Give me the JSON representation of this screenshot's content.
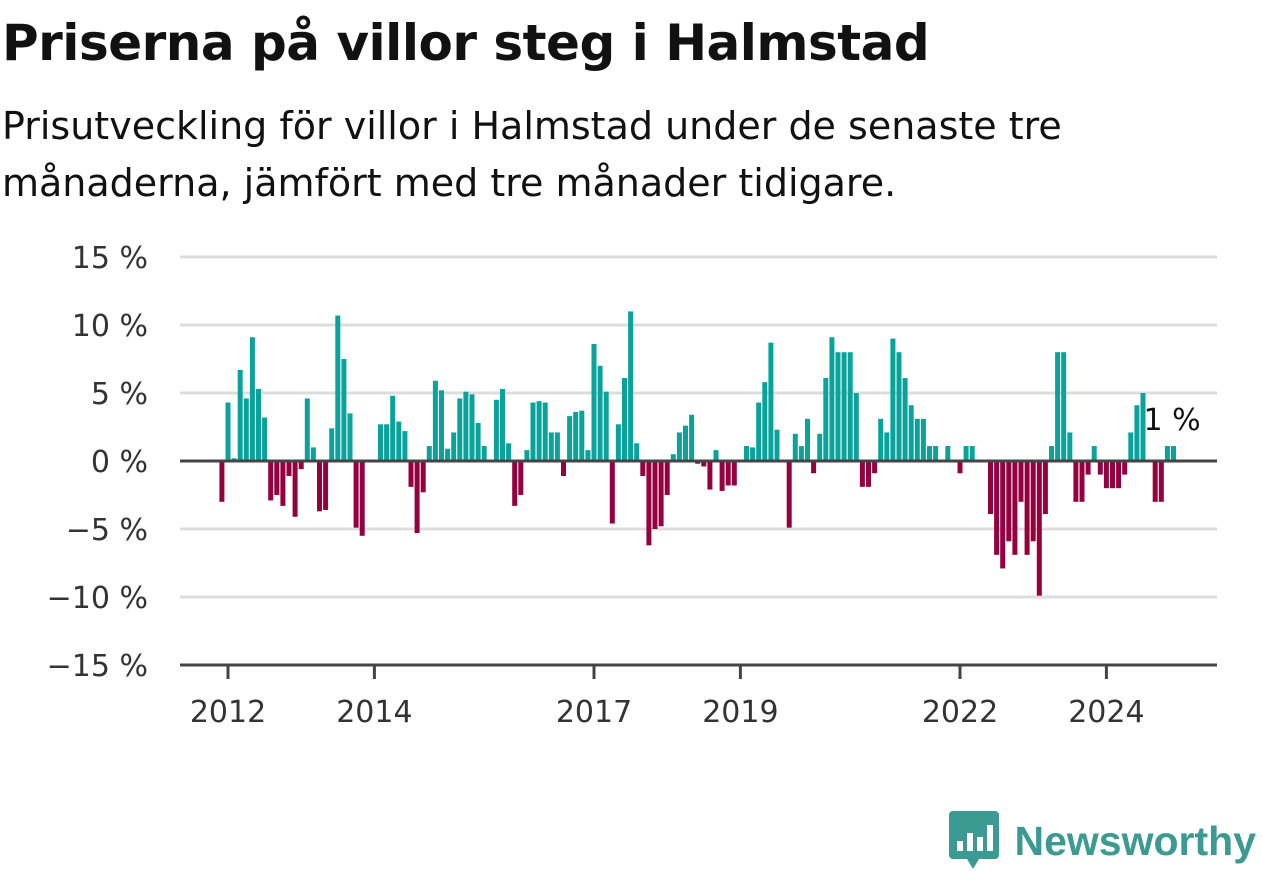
{
  "title": "Priserna på villor steg i Halmstad",
  "subtitle": "Prisutveckling för villor i Halmstad under de senaste tre månaderna, jämfört med tre månader tidigare.",
  "brand": {
    "name": "Newsworthy",
    "icon": "newsworthy-logo-icon",
    "color": "#3b9a92"
  },
  "colors": {
    "positive": "#0aa39c",
    "negative": "#95003f",
    "zero_line": "#444444",
    "grid": "#dddddd"
  },
  "chart_data": {
    "type": "bar",
    "title": "Priserna på villor steg i Halmstad",
    "subtitle": "Prisutveckling för villor i Halmstad under de senaste tre månaderna, jämfört med tre månader tidigare.",
    "xlabel": "",
    "ylabel": "",
    "ylim": [
      -15,
      15
    ],
    "y_ticks": [
      "15 %",
      "10 %",
      "5 %",
      "0 %",
      "−5 %",
      "−10 %",
      "−15 %"
    ],
    "y_tick_values": [
      15,
      10,
      5,
      0,
      -5,
      -10,
      -15
    ],
    "x_ticks": [
      "2012",
      "2014",
      "2017",
      "2019",
      "2022",
      "2024"
    ],
    "x_tick_values": [
      "2012-01",
      "2014-01",
      "2017-01",
      "2019-01",
      "2022-01",
      "2024-01"
    ],
    "grid": true,
    "start": "2011-12",
    "end": "2024-12",
    "annotation": "1 %",
    "series": [
      {
        "values": [
          -3,
          4.3,
          0.2,
          6.7,
          4.6,
          9.1,
          5.3,
          3.2,
          -2.9,
          -2.5,
          -3.3,
          -1.1,
          -4.1,
          -0.6,
          4.6,
          1,
          -3.7,
          -3.6,
          2.4,
          10.7,
          7.5,
          3.5,
          -4.9,
          -5.5,
          0,
          0,
          2.7,
          2.7,
          4.8,
          2.9,
          2.2,
          -1.9,
          -5.3,
          -2.3,
          1.1,
          5.9,
          5.2,
          0.9,
          2.1,
          4.6,
          5.1,
          4.9,
          2.8,
          1.1,
          0,
          4.5,
          5.3,
          1.3,
          -3.3,
          -2.5,
          0.8,
          4.3,
          4.4,
          4.3,
          2.1,
          2.1,
          -1.1,
          3.3,
          3.6,
          3.7,
          0.8,
          8.6,
          7,
          5.1,
          -4.6,
          2.7,
          6.1,
          11,
          1.3,
          -1.1,
          -6.2,
          -5,
          -4.8,
          -2.5,
          0.5,
          2.1,
          2.6,
          3.4,
          -0.2,
          -0.4,
          -2.1,
          0.8,
          -2.2,
          -1.8,
          -1.8,
          0,
          1.1,
          1,
          4.3,
          5.8,
          8.7,
          2.3,
          0,
          -4.9,
          2,
          1.1,
          3.1,
          -0.9,
          2,
          6.1,
          9.1,
          8,
          8,
          8,
          5,
          -1.9,
          -1.9,
          -0.9,
          3.1,
          2.1,
          9,
          8,
          6.1,
          4.1,
          3.1,
          3.1,
          1.1,
          1.1,
          0,
          1.1,
          0,
          -0.9,
          1.1,
          1.1,
          0,
          0,
          -3.9,
          -6.9,
          -7.9,
          -5.9,
          -6.9,
          -3,
          -6.9,
          -5.9,
          -9.9,
          -3.9,
          1.1,
          8,
          8,
          2.1,
          -3,
          -3,
          -1,
          1.1,
          -1,
          -2,
          -2,
          -2,
          -1,
          2.1,
          4.1,
          5,
          0,
          -3,
          -3,
          1.1,
          1.1
        ]
      }
    ]
  }
}
